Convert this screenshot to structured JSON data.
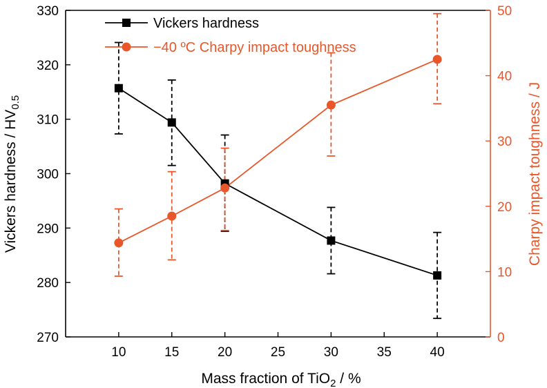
{
  "chart_data": {
    "type": "line",
    "x": [
      10,
      15,
      20,
      30,
      40
    ],
    "xlabel": "Mass fraction of TiO",
    "xlabel_sub": "2",
    "xlabel_suffix": " / %",
    "xlim": [
      5,
      45
    ],
    "x_ticks": [
      "10",
      "15",
      "20",
      "25",
      "30",
      "35",
      "40"
    ],
    "y_left_label": "Vickers hardness / HV",
    "y_left_label_sub": "0.5",
    "y_left_lim": [
      270,
      330
    ],
    "y_left_ticks": [
      "270",
      "280",
      "290",
      "300",
      "310",
      "320",
      "330"
    ],
    "y_right_label": "Charpy impact toughness / J",
    "y_right_lim": [
      0,
      50
    ],
    "y_right_ticks": [
      "0",
      "10",
      "20",
      "30",
      "40",
      "50"
    ],
    "legend_position": "top-left",
    "series": [
      {
        "name": "Vickers hardness",
        "axis": "left",
        "color": "#000000",
        "marker": "square",
        "values": [
          315.7,
          309.4,
          298.2,
          287.7,
          281.3
        ],
        "err_low": [
          307.3,
          301.5,
          289.4,
          281.6,
          273.4
        ],
        "err_high": [
          324.1,
          317.2,
          307.1,
          293.8,
          289.2
        ]
      },
      {
        "name": "−40 ºC Charpy impact toughness",
        "axis": "right",
        "color": "#E8562A",
        "marker": "circle",
        "values": [
          14.4,
          18.5,
          22.8,
          35.5,
          42.5
        ],
        "err_low": [
          9.3,
          11.8,
          16.3,
          27.7,
          35.7
        ],
        "err_high": [
          19.6,
          25.3,
          28.9,
          43.5,
          49.5
        ]
      }
    ]
  }
}
